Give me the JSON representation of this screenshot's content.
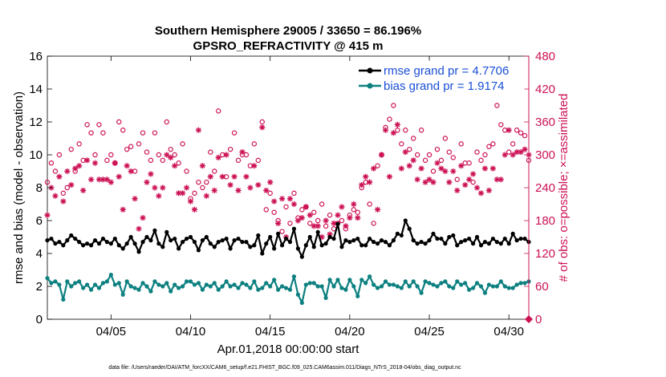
{
  "chart_data": {
    "type": "line",
    "title": "Southern Hemisphere 29005 / 33650 = 86.196%",
    "subtitle": "GPSRO_REFRACTIVITY @ 415 m",
    "xlabel": "Apr.01,2018 00:00:00 start",
    "ylabel": "rmse and bias (model - observation)",
    "y2label": "# of obs: o=possible; ×=assimilated",
    "footer": "data file: /Users/raeder/DAI/ATM_forcXX/CAM6_setup/f.e21.FHIST_BGC.f09_025.CAM6assim.011/Diags_NTrS_2018-04/obs_diag_output.nc",
    "x_range_days": [
      1.0,
      31.25
    ],
    "xticks": [
      5,
      10,
      15,
      20,
      25,
      30
    ],
    "xtick_labels": [
      "04/05",
      "04/10",
      "04/15",
      "04/20",
      "04/25",
      "04/30"
    ],
    "ylim": [
      0,
      16
    ],
    "yticks": [
      "0",
      "2",
      "4",
      "6",
      "8",
      "10",
      "12",
      "14",
      "16"
    ],
    "y2lim": [
      0,
      480
    ],
    "y2ticks": [
      "0",
      "60",
      "120",
      "180",
      "240",
      "300",
      "360",
      "420",
      "480"
    ],
    "colors": {
      "rmse": "#000000",
      "bias": "#0d8080",
      "obs": "#cc1155",
      "legend_text": "#1a4fd6"
    },
    "x": [
      1.0,
      1.25,
      1.5,
      1.75,
      2.0,
      2.25,
      2.5,
      2.75,
      3.0,
      3.25,
      3.5,
      3.75,
      4.0,
      4.25,
      4.5,
      4.75,
      5.0,
      5.25,
      5.5,
      5.75,
      6.0,
      6.25,
      6.5,
      6.75,
      7.0,
      7.25,
      7.5,
      7.75,
      8.0,
      8.25,
      8.5,
      8.75,
      9.0,
      9.25,
      9.5,
      9.75,
      10.0,
      10.25,
      10.5,
      10.75,
      11.0,
      11.25,
      11.5,
      11.75,
      12.0,
      12.25,
      12.5,
      12.75,
      13.0,
      13.25,
      13.5,
      13.75,
      14.0,
      14.25,
      14.5,
      14.75,
      15.0,
      15.25,
      15.5,
      15.75,
      16.0,
      16.25,
      16.5,
      16.75,
      17.0,
      17.25,
      17.5,
      17.75,
      18.0,
      18.25,
      18.5,
      18.75,
      19.0,
      19.25,
      19.5,
      19.75,
      20.0,
      20.25,
      20.5,
      20.75,
      21.0,
      21.25,
      21.5,
      21.75,
      22.0,
      22.25,
      22.5,
      22.75,
      23.0,
      23.25,
      23.5,
      23.75,
      24.0,
      24.25,
      24.5,
      24.75,
      25.0,
      25.25,
      25.5,
      25.75,
      26.0,
      26.25,
      26.5,
      26.75,
      27.0,
      27.25,
      27.5,
      27.75,
      28.0,
      28.25,
      28.5,
      28.75,
      29.0,
      29.25,
      29.5,
      29.75,
      30.0,
      30.25,
      30.5,
      30.75,
      31.0,
      31.25
    ],
    "series": [
      {
        "name": "rmse grand pr = 4.7706",
        "axis": "left",
        "values": [
          4.8,
          4.9,
          4.6,
          4.7,
          4.5,
          4.8,
          5.1,
          4.9,
          4.7,
          4.5,
          4.6,
          4.5,
          4.8,
          4.6,
          4.9,
          4.7,
          4.6,
          4.9,
          4.5,
          4.3,
          4.6,
          5.0,
          4.6,
          4.1,
          4.7,
          5.0,
          4.8,
          5.4,
          4.6,
          4.4,
          5.3,
          4.8,
          4.9,
          4.3,
          4.7,
          4.9,
          5.0,
          4.7,
          4.2,
          4.8,
          5.0,
          4.6,
          4.4,
          4.7,
          4.8,
          4.9,
          4.3,
          4.8,
          4.9,
          4.7,
          4.7,
          4.4,
          4.5,
          5.1,
          4.0,
          4.6,
          5.0,
          4.3,
          5.2,
          4.5,
          4.9,
          4.7,
          5.5,
          4.3,
          3.8,
          4.5,
          5.0,
          4.4,
          5.3,
          4.5,
          4.6,
          5.0,
          4.9,
          5.8,
          4.4,
          4.8,
          4.7,
          4.8,
          4.9,
          4.5,
          4.5,
          4.9,
          4.7,
          4.6,
          4.8,
          4.7,
          4.5,
          4.8,
          5.2,
          5.1,
          6.0,
          5.5,
          4.8,
          4.6,
          4.7,
          4.6,
          4.8,
          5.2,
          4.9,
          4.9,
          4.6,
          5.0,
          5.1,
          4.5,
          4.7,
          4.8,
          4.9,
          4.6,
          5.0,
          4.5,
          4.7,
          4.6,
          4.9,
          4.7,
          4.6,
          4.9,
          4.6,
          5.2,
          4.8,
          4.9,
          4.9,
          4.7
        ]
      },
      {
        "name": "bias grand pr = 1.9174",
        "axis": "left",
        "values": [
          2.5,
          2.2,
          2.3,
          2.1,
          1.2,
          2.3,
          2.0,
          2.2,
          2.3,
          1.9,
          2.1,
          1.8,
          2.1,
          1.9,
          2.2,
          2.3,
          2.7,
          2.1,
          2.2,
          1.5,
          2.3,
          2.0,
          1.9,
          1.8,
          2.2,
          2.0,
          1.7,
          2.3,
          2.1,
          2.0,
          2.2,
          1.7,
          2.1,
          1.9,
          2.0,
          2.3,
          2.3,
          2.1,
          2.2,
          1.8,
          2.1,
          2.0,
          2.2,
          1.8,
          2.0,
          2.3,
          2.0,
          2.1,
          1.9,
          2.2,
          2.1,
          1.9,
          2.3,
          1.8,
          1.9,
          2.2,
          2.0,
          2.4,
          1.8,
          2.0,
          1.9,
          1.8,
          2.6,
          1.5,
          1.0,
          2.1,
          2.2,
          2.2,
          2.0,
          2.0,
          1.3,
          2.4,
          2.0,
          2.4,
          1.9,
          1.8,
          2.4,
          2.0,
          1.4,
          2.4,
          2.2,
          2.6,
          2.1,
          1.9,
          2.0,
          2.3,
          2.1,
          2.1,
          2.0,
          1.9,
          2.3,
          2.0,
          2.3,
          2.0,
          1.6,
          2.3,
          2.2,
          2.1,
          2.0,
          2.2,
          2.3,
          2.0,
          1.9,
          2.3,
          2.1,
          2.2,
          1.8,
          1.9,
          2.2,
          2.0,
          1.6,
          2.1,
          2.0,
          2.0,
          2.3,
          2.0,
          1.9,
          1.9,
          2.1,
          2.2,
          2.2,
          2.3
        ]
      },
      {
        "name": "obs possible",
        "axis": "right",
        "values": [
          250,
          285,
          270,
          300,
          230,
          240,
          310,
          270,
          320,
          290,
          355,
          340,
          300,
          355,
          340,
          290,
          300,
          285,
          360,
          345,
          310,
          315,
          270,
          320,
          340,
          305,
          290,
          340,
          300,
          290,
          360,
          310,
          300,
          285,
          320,
          270,
          220,
          230,
          250,
          240,
          250,
          305,
          270,
          380,
          300,
          260,
          310,
          340,
          290,
          300,
          300,
          280,
          320,
          290,
          360,
          200,
          230,
          195,
          180,
          160,
          205,
          175,
          230,
          185,
          200,
          205,
          175,
          195,
          180,
          210,
          170,
          190,
          165,
          175,
          180,
          165,
          190,
          200,
          195,
          240,
          250,
          210,
          175,
          280,
          300,
          350,
          365,
          390,
          345,
          320,
          345,
          310,
          330,
          300,
          345,
          290,
          300,
          270,
          310,
          290,
          330,
          305,
          295,
          255,
          320,
          285,
          285,
          250,
          305,
          290,
          300,
          315,
          320,
          390,
          355,
          345,
          305,
          320,
          345,
          340,
          335,
          290
        ]
      },
      {
        "name": "obs assimilated",
        "axis": "right",
        "values": [
          190,
          240,
          225,
          260,
          215,
          270,
          245,
          275,
          280,
          235,
          290,
          255,
          285,
          255,
          255,
          255,
          250,
          285,
          260,
          200,
          280,
          270,
          220,
          165,
          185,
          250,
          265,
          240,
          225,
          240,
          300,
          295,
          280,
          230,
          230,
          240,
          215,
          200,
          345,
          280,
          225,
          260,
          235,
          295,
          260,
          300,
          245,
          260,
          235,
          305,
          260,
          240,
          280,
          245,
          350,
          235,
          250,
          215,
          175,
          220,
          150,
          220,
          210,
          180,
          185,
          205,
          190,
          170,
          170,
          150,
          180,
          155,
          175,
          190,
          205,
          170,
          185,
          210,
          185,
          245,
          260,
          250,
          275,
          200,
          300,
          345,
          260,
          340,
          355,
          275,
          305,
          280,
          290,
          255,
          275,
          250,
          255,
          250,
          285,
          275,
          270,
          250,
          270,
          235,
          280,
          245,
          255,
          265,
          240,
          230,
          275,
          235,
          275,
          255,
          255,
          300,
          345,
          300,
          305,
          305,
          310,
          300
        ]
      }
    ],
    "legend": [
      "rmse grand pr = 4.7706",
      "bias grand pr = 1.9174"
    ],
    "legend_position": "top-right"
  }
}
